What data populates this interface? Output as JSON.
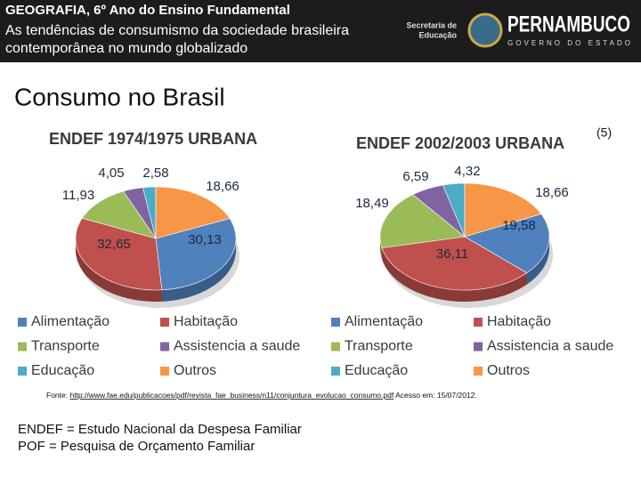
{
  "header": {
    "course": "GEOGRAFIA, 6º Ano do Ensino Fundamental",
    "subtitle_lines": [
      "As tendências de consumismo da sociedade brasileira",
      "contemporânea no mundo globalizado"
    ],
    "logo_secretaria": [
      "Secretaria de",
      "Educação"
    ],
    "logo_state": "PERNAMBUCO",
    "logo_gov": "GOVERNO DO ESTADO"
  },
  "slide_title": "Consumo no Brasil",
  "reference": "(5)",
  "chart_data": [
    {
      "type": "pie",
      "title": "ENDEF 1974/1975 URBANA",
      "categories": [
        "Alimentação",
        "Habitação",
        "Transporte",
        "Assistencia a saude",
        "Educação",
        "Outros"
      ],
      "values": [
        30.13,
        32.65,
        11.93,
        4.05,
        2.58,
        18.66
      ],
      "value_labels": [
        "30,13",
        "32,65",
        "11,93",
        "4,05",
        "2,58",
        "18,66"
      ],
      "colors": [
        "#4f81bd",
        "#c0504d",
        "#9bbb59",
        "#8064a2",
        "#4bacc6",
        "#f79646"
      ]
    },
    {
      "type": "pie",
      "title": "ENDEF 2002/2003 URBANA",
      "categories": [
        "Alimentação",
        "Habitação",
        "Transporte",
        "Assistencia a saude",
        "Educação",
        "Outros"
      ],
      "values": [
        19.58,
        36.11,
        18.49,
        6.59,
        4.32,
        18.66
      ],
      "value_labels": [
        "19,58",
        "36,11",
        "18,49",
        "6,59",
        "4,32",
        "18,66"
      ],
      "colors": [
        "#4f81bd",
        "#c0504d",
        "#9bbb59",
        "#8064a2",
        "#4bacc6",
        "#f79646"
      ]
    }
  ],
  "source": {
    "prefix": "Fonte:",
    "url": "http://www.fae.edu/publicacoes/pdf/revista_fae_business/n11/conjuntura_evolucao_consumo.pdf",
    "access": "Acesso em: 15/07/2012."
  },
  "notes": [
    "ENDEF = Estudo Nacional da Despesa Familiar",
    "POF = Pesquisa de Orçamento Familiar"
  ]
}
